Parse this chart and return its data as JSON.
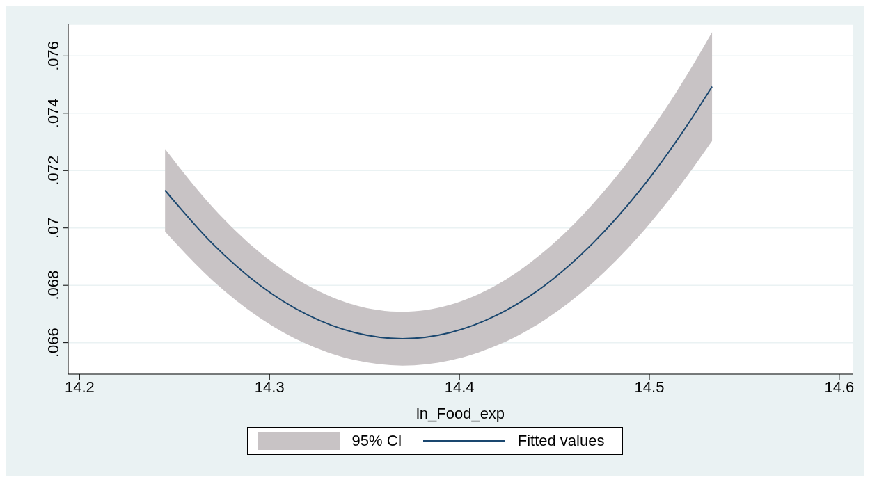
{
  "chart_data": {
    "type": "line",
    "xlabel": "ln_Food_exp",
    "annotations": [
      "95% CI"
    ],
    "x": [
      14.245,
      14.27,
      14.295,
      14.32,
      14.345,
      14.37,
      14.395,
      14.42,
      14.445,
      14.47,
      14.495,
      14.52,
      14.533
    ],
    "series": [
      {
        "name": "Fitted values",
        "color": "#1a476f",
        "values": [
          0.07131,
          0.06945,
          0.068,
          0.06697,
          0.06635,
          0.06614,
          0.06635,
          0.06697,
          0.068,
          0.06945,
          0.07131,
          0.07359,
          0.07493
        ],
        "lower": [
          0.06987,
          0.06817,
          0.06686,
          0.06594,
          0.06539,
          0.0652,
          0.06538,
          0.06591,
          0.0668,
          0.06808,
          0.06975,
          0.07182,
          0.07303
        ],
        "upper": [
          0.07275,
          0.07073,
          0.06914,
          0.068,
          0.06731,
          0.06708,
          0.06732,
          0.06803,
          0.0692,
          0.07082,
          0.07287,
          0.07536,
          0.07683
        ]
      }
    ],
    "xlim": [
      14.194,
      14.607
    ],
    "xticks": [
      14.2,
      14.3,
      14.4,
      14.5,
      14.6
    ],
    "ylim": [
      0.0649,
      0.0771
    ],
    "yticks": [
      {
        "value": 0.066,
        "label": ".066"
      },
      {
        "value": 0.068,
        "label": ".068"
      },
      {
        "value": 0.07,
        "label": ".07"
      },
      {
        "value": 0.072,
        "label": ".072"
      },
      {
        "value": 0.074,
        "label": ".074"
      },
      {
        "value": 0.076,
        "label": ".076"
      }
    ],
    "grid": "y",
    "legend": "bottom",
    "marker": "none",
    "line_style": "solid"
  }
}
